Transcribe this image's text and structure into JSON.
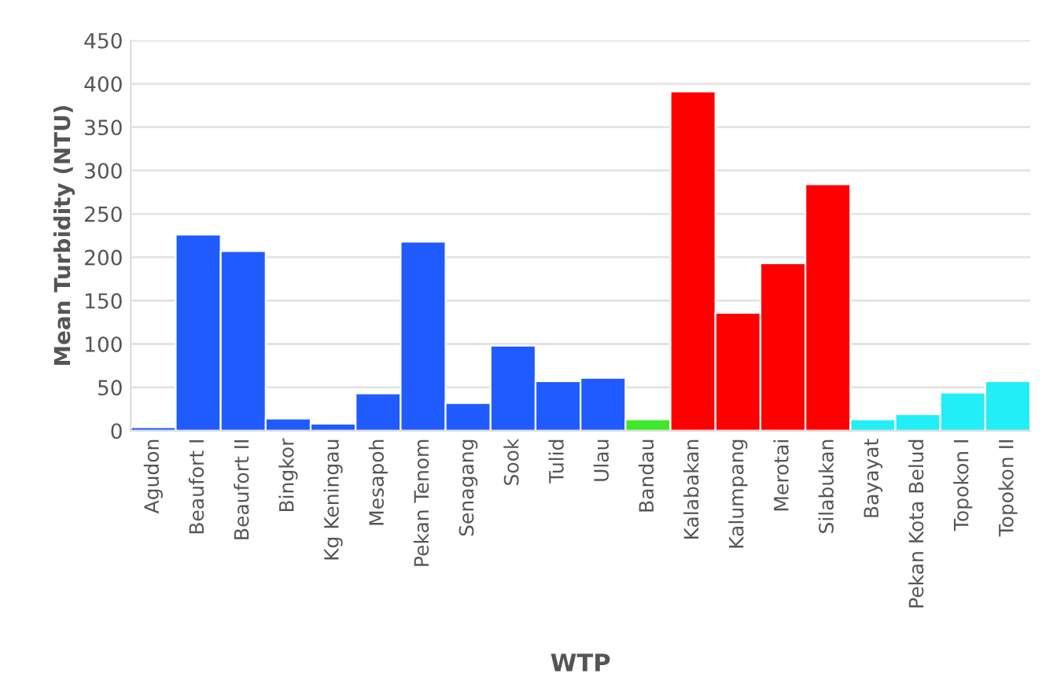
{
  "chart_data": {
    "type": "bar",
    "xlabel": "WTP",
    "ylabel": "Mean Turbidity (NTU)",
    "categories": [
      "Agudon",
      "Beaufort I",
      "Beaufort II",
      "Bingkor",
      "Kg Keningau",
      "Mesapoh",
      "Pekan Tenom",
      "Senagang",
      "Sook",
      "Tulid",
      "Ulau",
      "Bandau",
      "Kalabakan",
      "Kalumpang",
      "Merotai",
      "Silabukan",
      "Bayayat",
      "Pekan Kota Belud",
      "Topokon I",
      "Topokon II"
    ],
    "values": [
      4,
      226,
      207,
      14,
      8,
      43,
      218,
      32,
      98,
      57,
      61,
      13,
      391,
      136,
      193,
      284,
      13,
      19,
      44,
      57
    ],
    "colors": [
      "#1f5bff",
      "#1f5bff",
      "#1f5bff",
      "#1f5bff",
      "#1f5bff",
      "#1f5bff",
      "#1f5bff",
      "#1f5bff",
      "#1f5bff",
      "#1f5bff",
      "#1f5bff",
      "#3ee82a",
      "#ff0000",
      "#ff0000",
      "#ff0000",
      "#ff0000",
      "#22eef8",
      "#22eef8",
      "#22eef8",
      "#22eef8"
    ],
    "ylim": [
      0,
      450
    ],
    "yticks": [
      0,
      50,
      100,
      150,
      200,
      250,
      300,
      350,
      400,
      450
    ],
    "grid": "y"
  }
}
